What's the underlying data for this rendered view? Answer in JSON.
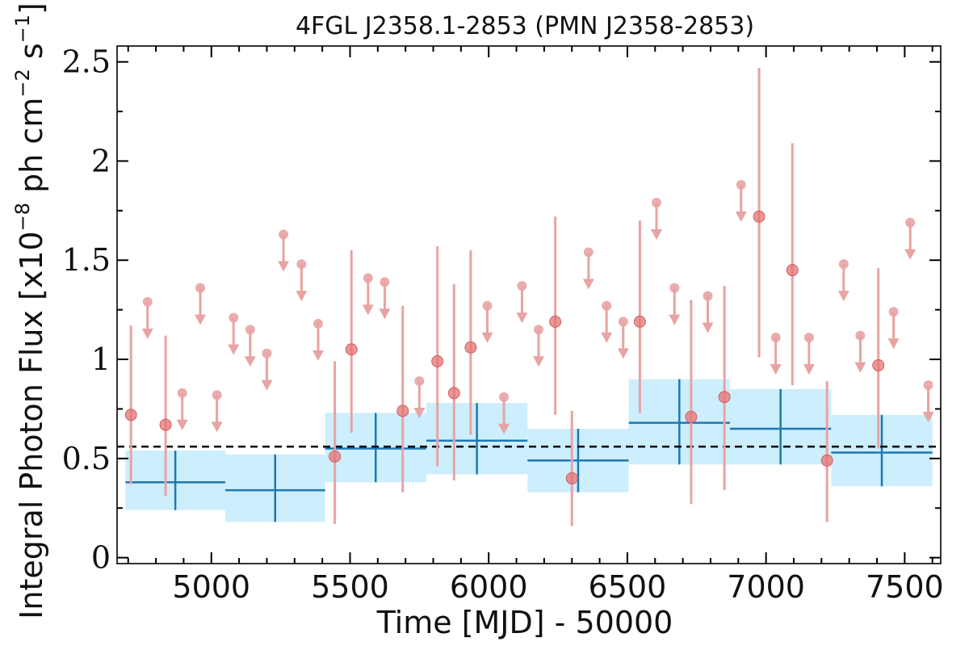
{
  "chart_data": {
    "type": "scatter",
    "title": "4FGL J2358.1-2853 (PMN J2358-2853)",
    "xlabel": "Time [MJD] - 50000",
    "ylabel": {
      "prefix": "Integral Photon Flux [x10",
      "exp1": "−8",
      "mid": " ph cm",
      "exp2": "−2",
      "mid2": " s",
      "exp3": "−1",
      "suffix": "]"
    },
    "xlim": [
      4660,
      7630
    ],
    "ylim": [
      -0.03,
      2.58
    ],
    "xticks": [
      5000,
      5500,
      6000,
      6500,
      7000,
      7500
    ],
    "yticks": [
      0,
      0.5,
      1,
      1.5,
      2,
      2.5
    ],
    "ytick_labels": [
      "0",
      "0.5",
      "1",
      "1.5",
      "2",
      "2.5"
    ],
    "grid": false,
    "mean_flux": 0.56,
    "colors": {
      "bins_fill": "#cdeefc",
      "bins_line": "#1f77b4",
      "points": "#e57373",
      "upper_limits": "#e8a3a3",
      "mean_line": "#000000"
    },
    "series": [
      {
        "type": "binned",
        "points": [
          {
            "x0": 4690,
            "x1": 5050,
            "y": 0.38,
            "ylo": 0.24,
            "yhi": 0.54
          },
          {
            "x0": 5050,
            "x1": 5410,
            "y": 0.34,
            "ylo": 0.18,
            "yhi": 0.52
          },
          {
            "x0": 5410,
            "x1": 5775,
            "y": 0.55,
            "ylo": 0.38,
            "yhi": 0.73
          },
          {
            "x0": 5775,
            "x1": 6140,
            "y": 0.59,
            "ylo": 0.42,
            "yhi": 0.78
          },
          {
            "x0": 6140,
            "x1": 6505,
            "y": 0.49,
            "ylo": 0.33,
            "yhi": 0.65
          },
          {
            "x0": 6505,
            "x1": 6870,
            "y": 0.68,
            "ylo": 0.47,
            "yhi": 0.9
          },
          {
            "x0": 6870,
            "x1": 7235,
            "y": 0.65,
            "ylo": 0.47,
            "yhi": 0.85
          },
          {
            "x0": 7235,
            "x1": 7600,
            "y": 0.53,
            "ylo": 0.36,
            "yhi": 0.72
          }
        ]
      },
      {
        "type": "detections",
        "points": [
          {
            "x": 4710,
            "y": 0.72,
            "ylo": 0.37,
            "yhi": 1.17
          },
          {
            "x": 4835,
            "y": 0.67,
            "ylo": 0.31,
            "yhi": 1.12
          },
          {
            "x": 5445,
            "y": 0.51,
            "ylo": 0.17,
            "yhi": 0.99
          },
          {
            "x": 5505,
            "y": 1.05,
            "ylo": 0.63,
            "yhi": 1.55
          },
          {
            "x": 5690,
            "y": 0.74,
            "ylo": 0.33,
            "yhi": 1.27
          },
          {
            "x": 5815,
            "y": 0.99,
            "ylo": 0.46,
            "yhi": 1.57
          },
          {
            "x": 5875,
            "y": 0.83,
            "ylo": 0.39,
            "yhi": 1.38
          },
          {
            "x": 5935,
            "y": 1.06,
            "ylo": 0.62,
            "yhi": 1.55
          },
          {
            "x": 6240,
            "y": 1.19,
            "ylo": 0.72,
            "yhi": 1.72
          },
          {
            "x": 6300,
            "y": 0.4,
            "ylo": 0.16,
            "yhi": 0.74
          },
          {
            "x": 6545,
            "y": 1.19,
            "ylo": 0.73,
            "yhi": 1.7
          },
          {
            "x": 6730,
            "y": 0.71,
            "ylo": 0.27,
            "yhi": 1.3
          },
          {
            "x": 6850,
            "y": 0.81,
            "ylo": 0.34,
            "yhi": 1.37
          },
          {
            "x": 6975,
            "y": 1.72,
            "ylo": 1.01,
            "yhi": 2.47
          },
          {
            "x": 7095,
            "y": 1.45,
            "ylo": 0.87,
            "yhi": 2.09
          },
          {
            "x": 7220,
            "y": 0.49,
            "ylo": 0.18,
            "yhi": 0.89
          },
          {
            "x": 7405,
            "y": 0.97,
            "ylo": 0.55,
            "yhi": 1.46
          }
        ]
      },
      {
        "type": "upper_limits",
        "points": [
          {
            "x": 4770,
            "y": 1.29
          },
          {
            "x": 4895,
            "y": 0.83
          },
          {
            "x": 4960,
            "y": 1.36
          },
          {
            "x": 5020,
            "y": 0.82
          },
          {
            "x": 5080,
            "y": 1.21
          },
          {
            "x": 5140,
            "y": 1.15
          },
          {
            "x": 5200,
            "y": 1.03
          },
          {
            "x": 5260,
            "y": 1.63
          },
          {
            "x": 5325,
            "y": 1.48
          },
          {
            "x": 5385,
            "y": 1.18
          },
          {
            "x": 5565,
            "y": 1.41
          },
          {
            "x": 5625,
            "y": 1.39
          },
          {
            "x": 5750,
            "y": 0.89
          },
          {
            "x": 5995,
            "y": 1.27
          },
          {
            "x": 6055,
            "y": 0.81
          },
          {
            "x": 6120,
            "y": 1.37
          },
          {
            "x": 6180,
            "y": 1.15
          },
          {
            "x": 6360,
            "y": 1.54
          },
          {
            "x": 6425,
            "y": 1.27
          },
          {
            "x": 6485,
            "y": 1.19
          },
          {
            "x": 6605,
            "y": 1.79
          },
          {
            "x": 6670,
            "y": 1.36
          },
          {
            "x": 6790,
            "y": 1.32
          },
          {
            "x": 6910,
            "y": 1.88
          },
          {
            "x": 7035,
            "y": 1.11
          },
          {
            "x": 7155,
            "y": 1.11
          },
          {
            "x": 7280,
            "y": 1.48
          },
          {
            "x": 7340,
            "y": 1.12
          },
          {
            "x": 7460,
            "y": 1.24
          },
          {
            "x": 7520,
            "y": 1.69
          },
          {
            "x": 7585,
            "y": 0.87
          }
        ]
      }
    ]
  }
}
